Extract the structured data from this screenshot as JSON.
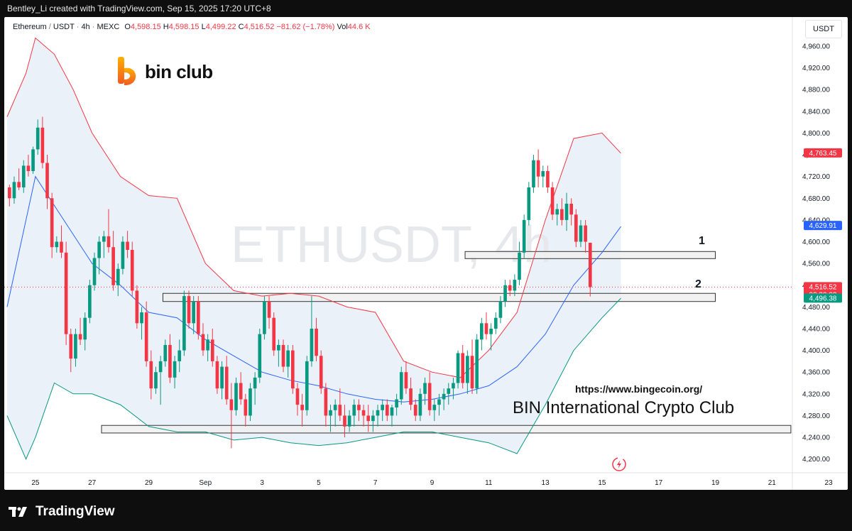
{
  "header": {
    "attribution": "Bentley_Li created with TradingView.com, Sep 15, 2025 17:20 UTC+8"
  },
  "legend": {
    "symbol": "Ethereum",
    "quote": "USDT",
    "interval": "4h",
    "exchange": "MEXC",
    "open_label": "O",
    "open": "4,598.15",
    "high_label": "H",
    "high": "4,598.15",
    "low_label": "L",
    "low": "4,499.22",
    "close_label": "C",
    "close": "4,516.52",
    "change": "−81.62 (−1.78%)",
    "vol_label": "Vol",
    "vol": "44.6 K"
  },
  "unit_label": "USDT",
  "logo": {
    "text": "bin club"
  },
  "watermark": "ETHUSDT, 4h",
  "annotations": {
    "zone1_label": "1",
    "zone2_label": "2",
    "url": "https://www.bingecoin.org/",
    "club": "BIN International Crypto Club"
  },
  "footer": {
    "brand": "TradingView"
  },
  "colors": {
    "up": "#089981",
    "down": "#f23645",
    "upper_band": "#f23645",
    "lower_band": "#089981",
    "basis": "#2962ff",
    "band_fill": "#e9f0f7"
  },
  "chart_data": {
    "type": "candlestick",
    "ylim": [
      4180,
      4990
    ],
    "y_ticks": [
      4200,
      4240,
      4280,
      4320,
      4360,
      4400,
      4440,
      4480,
      4520,
      4560,
      4600,
      4640,
      4680,
      4720,
      4760,
      4800,
      4840,
      4880,
      4920,
      4960
    ],
    "y_tick_labels": [
      "4,200.00",
      "4,240.00",
      "4,280.00",
      "4,320.00",
      "4,360.00",
      "4,400.00",
      "4,440.00",
      "4,480.00",
      "4,520.00",
      "4,560.00",
      "4,600.00",
      "4,640.00",
      "4,680.00",
      "4,720.00",
      "4,760.00",
      "4,800.00",
      "4,840.00",
      "4,880.00",
      "4,920.00",
      "4,960.00"
    ],
    "x_ticks": [
      {
        "label": "25",
        "bar": 6
      },
      {
        "label": "27",
        "bar": 18
      },
      {
        "label": "29",
        "bar": 30
      },
      {
        "label": "Sep",
        "bar": 42
      },
      {
        "label": "3",
        "bar": 54
      },
      {
        "label": "5",
        "bar": 66
      },
      {
        "label": "7",
        "bar": 78
      },
      {
        "label": "9",
        "bar": 90
      },
      {
        "label": "11",
        "bar": 102
      },
      {
        "label": "13",
        "bar": 114
      },
      {
        "label": "15",
        "bar": 126
      },
      {
        "label": "17",
        "bar": 138
      },
      {
        "label": "19",
        "bar": 150
      },
      {
        "label": "21",
        "bar": 162
      },
      {
        "label": "23",
        "bar": 174
      }
    ],
    "price_tags": [
      {
        "label": "4,763.45",
        "price": 4763.45,
        "color": "#f23645"
      },
      {
        "label": "4,629.91",
        "price": 4629.91,
        "color": "#2962ff"
      },
      {
        "label": "4,516.52",
        "price": 4516.52,
        "color": "#f23645",
        "sub": "02:39:03"
      },
      {
        "label": "4,496.38",
        "price": 4496.38,
        "color": "#089981"
      }
    ],
    "zones": [
      {
        "name": "1",
        "from_bar": 97,
        "to_bar": 150,
        "low": 4570,
        "high": 4582
      },
      {
        "name": "2",
        "from_bar": 33,
        "to_bar": 150,
        "low": 4490,
        "high": 4505
      },
      {
        "name": "base",
        "from_bar": 20,
        "to_bar": 166,
        "low": 4248,
        "high": 4262
      }
    ],
    "candles": [
      [
        4700,
        4705,
        4665,
        4680
      ],
      [
        4680,
        4720,
        4670,
        4710
      ],
      [
        4710,
        4735,
        4695,
        4700
      ],
      [
        4700,
        4750,
        4690,
        4740
      ],
      [
        4740,
        4760,
        4720,
        4730
      ],
      [
        4730,
        4775,
        4725,
        4770
      ],
      [
        4770,
        4825,
        4760,
        4810
      ],
      [
        4810,
        4830,
        4735,
        4745
      ],
      [
        4745,
        4760,
        4660,
        4680
      ],
      [
        4680,
        4690,
        4570,
        4590
      ],
      [
        4590,
        4610,
        4580,
        4600
      ],
      [
        4600,
        4630,
        4570,
        4580
      ],
      [
        4580,
        4600,
        4410,
        4430
      ],
      [
        4430,
        4440,
        4360,
        4385
      ],
      [
        4385,
        4440,
        4370,
        4430
      ],
      [
        4430,
        4460,
        4410,
        4420
      ],
      [
        4420,
        4470,
        4400,
        4460
      ],
      [
        4460,
        4530,
        4450,
        4520
      ],
      [
        4520,
        4580,
        4510,
        4570
      ],
      [
        4570,
        4610,
        4540,
        4600
      ],
      [
        4600,
        4620,
        4570,
        4610
      ],
      [
        4610,
        4660,
        4580,
        4590
      ],
      [
        4590,
        4620,
        4510,
        4520
      ],
      [
        4520,
        4560,
        4500,
        4550
      ],
      [
        4550,
        4610,
        4540,
        4600
      ],
      [
        4600,
        4620,
        4570,
        4585
      ],
      [
        4585,
        4600,
        4500,
        4510
      ],
      [
        4510,
        4520,
        4440,
        4450
      ],
      [
        4450,
        4480,
        4420,
        4470
      ],
      [
        4470,
        4490,
        4370,
        4380
      ],
      [
        4380,
        4400,
        4310,
        4330
      ],
      [
        4330,
        4370,
        4320,
        4360
      ],
      [
        4360,
        4390,
        4300,
        4380
      ],
      [
        4380,
        4420,
        4370,
        4410
      ],
      [
        4410,
        4430,
        4340,
        4350
      ],
      [
        4350,
        4390,
        4330,
        4380
      ],
      [
        4380,
        4420,
        4360,
        4400
      ],
      [
        4400,
        4510,
        4390,
        4500
      ],
      [
        4500,
        4510,
        4440,
        4450
      ],
      [
        4450,
        4500,
        4430,
        4490
      ],
      [
        4490,
        4500,
        4420,
        4430
      ],
      [
        4430,
        4450,
        4390,
        4400
      ],
      [
        4400,
        4430,
        4380,
        4420
      ],
      [
        4420,
        4440,
        4370,
        4380
      ],
      [
        4380,
        4390,
        4320,
        4330
      ],
      [
        4330,
        4380,
        4310,
        4370
      ],
      [
        4370,
        4390,
        4300,
        4310
      ],
      [
        4310,
        4340,
        4220,
        4290
      ],
      [
        4290,
        4350,
        4280,
        4340
      ],
      [
        4340,
        4360,
        4300,
        4310
      ],
      [
        4310,
        4320,
        4260,
        4280
      ],
      [
        4280,
        4340,
        4270,
        4330
      ],
      [
        4330,
        4360,
        4300,
        4350
      ],
      [
        4350,
        4440,
        4340,
        4430
      ],
      [
        4430,
        4500,
        4420,
        4490
      ],
      [
        4490,
        4500,
        4440,
        4460
      ],
      [
        4460,
        4470,
        4390,
        4400
      ],
      [
        4400,
        4420,
        4370,
        4410
      ],
      [
        4410,
        4420,
        4360,
        4370
      ],
      [
        4370,
        4410,
        4350,
        4400
      ],
      [
        4400,
        4410,
        4320,
        4330
      ],
      [
        4330,
        4340,
        4280,
        4300
      ],
      [
        4300,
        4320,
        4260,
        4290
      ],
      [
        4290,
        4390,
        4280,
        4380
      ],
      [
        4380,
        4500,
        4370,
        4440
      ],
      [
        4440,
        4460,
        4380,
        4390
      ],
      [
        4390,
        4400,
        4320,
        4330
      ],
      [
        4330,
        4340,
        4260,
        4280
      ],
      [
        4280,
        4300,
        4250,
        4290
      ],
      [
        4290,
        4310,
        4260,
        4300
      ],
      [
        4300,
        4330,
        4270,
        4280
      ],
      [
        4280,
        4300,
        4240,
        4260
      ],
      [
        4260,
        4290,
        4250,
        4280
      ],
      [
        4280,
        4310,
        4260,
        4300
      ],
      [
        4300,
        4310,
        4270,
        4290
      ],
      [
        4290,
        4300,
        4260,
        4280
      ],
      [
        4280,
        4300,
        4250,
        4270
      ],
      [
        4270,
        4290,
        4250,
        4280
      ],
      [
        4280,
        4300,
        4260,
        4290
      ],
      [
        4290,
        4310,
        4270,
        4300
      ],
      [
        4300,
        4310,
        4270,
        4280
      ],
      [
        4280,
        4300,
        4260,
        4295
      ],
      [
        4295,
        4320,
        4280,
        4310
      ],
      [
        4310,
        4370,
        4300,
        4360
      ],
      [
        4360,
        4380,
        4320,
        4330
      ],
      [
        4330,
        4350,
        4290,
        4300
      ],
      [
        4300,
        4310,
        4270,
        4280
      ],
      [
        4280,
        4330,
        4270,
        4320
      ],
      [
        4320,
        4350,
        4300,
        4340
      ],
      [
        4340,
        4360,
        4280,
        4290
      ],
      [
        4290,
        4310,
        4270,
        4300
      ],
      [
        4300,
        4320,
        4280,
        4310
      ],
      [
        4310,
        4330,
        4290,
        4320
      ],
      [
        4320,
        4340,
        4300,
        4330
      ],
      [
        4330,
        4350,
        4310,
        4340
      ],
      [
        4340,
        4400,
        4330,
        4395
      ],
      [
        4395,
        4410,
        4330,
        4340
      ],
      [
        4340,
        4400,
        4320,
        4390
      ],
      [
        4390,
        4420,
        4320,
        4330
      ],
      [
        4330,
        4430,
        4320,
        4420
      ],
      [
        4420,
        4460,
        4400,
        4450
      ],
      [
        4450,
        4470,
        4420,
        4430
      ],
      [
        4430,
        4450,
        4400,
        4440
      ],
      [
        4440,
        4470,
        4430,
        4460
      ],
      [
        4460,
        4500,
        4450,
        4490
      ],
      [
        4490,
        4530,
        4480,
        4520
      ],
      [
        4520,
        4530,
        4500,
        4510
      ],
      [
        4510,
        4540,
        4500,
        4530
      ],
      [
        4530,
        4600,
        4520,
        4580
      ],
      [
        4580,
        4650,
        4570,
        4640
      ],
      [
        4640,
        4710,
        4630,
        4700
      ],
      [
        4700,
        4760,
        4690,
        4750
      ],
      [
        4750,
        4770,
        4700,
        4720
      ],
      [
        4720,
        4740,
        4700,
        4730
      ],
      [
        4730,
        4740,
        4690,
        4700
      ],
      [
        4700,
        4710,
        4640,
        4650
      ],
      [
        4650,
        4670,
        4630,
        4660
      ],
      [
        4660,
        4680,
        4630,
        4640
      ],
      [
        4640,
        4690,
        4620,
        4670
      ],
      [
        4670,
        4680,
        4630,
        4650
      ],
      [
        4650,
        4660,
        4590,
        4600
      ],
      [
        4600,
        4640,
        4590,
        4630
      ],
      [
        4630,
        4640,
        4580,
        4600
      ],
      [
        4598.15,
        4598.15,
        4499.22,
        4516.52
      ]
    ],
    "basis": [
      [
        0,
        4480
      ],
      [
        6,
        4720
      ],
      [
        12,
        4640
      ],
      [
        18,
        4560
      ],
      [
        24,
        4520
      ],
      [
        30,
        4470
      ],
      [
        36,
        4460
      ],
      [
        42,
        4420
      ],
      [
        48,
        4390
      ],
      [
        54,
        4360
      ],
      [
        60,
        4345
      ],
      [
        66,
        4335
      ],
      [
        72,
        4320
      ],
      [
        78,
        4310
      ],
      [
        84,
        4305
      ],
      [
        90,
        4310
      ],
      [
        96,
        4320
      ],
      [
        102,
        4335
      ],
      [
        108,
        4370
      ],
      [
        114,
        4430
      ],
      [
        120,
        4520
      ],
      [
        126,
        4580
      ],
      [
        130,
        4628
      ]
    ],
    "upper_band": [
      [
        0,
        4830
      ],
      [
        4,
        4910
      ],
      [
        6,
        4975
      ],
      [
        10,
        4945
      ],
      [
        14,
        4880
      ],
      [
        18,
        4800
      ],
      [
        24,
        4720
      ],
      [
        30,
        4685
      ],
      [
        36,
        4680
      ],
      [
        42,
        4560
      ],
      [
        48,
        4510
      ],
      [
        54,
        4500
      ],
      [
        60,
        4505
      ],
      [
        66,
        4500
      ],
      [
        72,
        4480
      ],
      [
        78,
        4470
      ],
      [
        84,
        4380
      ],
      [
        90,
        4360
      ],
      [
        96,
        4350
      ],
      [
        102,
        4400
      ],
      [
        108,
        4470
      ],
      [
        114,
        4640
      ],
      [
        120,
        4790
      ],
      [
        126,
        4800
      ],
      [
        130,
        4763
      ]
    ],
    "lower_band": [
      [
        0,
        4280
      ],
      [
        4,
        4200
      ],
      [
        6,
        4240
      ],
      [
        10,
        4340
      ],
      [
        14,
        4320
      ],
      [
        18,
        4320
      ],
      [
        24,
        4300
      ],
      [
        30,
        4260
      ],
      [
        36,
        4250
      ],
      [
        42,
        4250
      ],
      [
        48,
        4235
      ],
      [
        54,
        4240
      ],
      [
        60,
        4230
      ],
      [
        66,
        4225
      ],
      [
        72,
        4230
      ],
      [
        78,
        4240
      ],
      [
        84,
        4250
      ],
      [
        90,
        4250
      ],
      [
        96,
        4240
      ],
      [
        102,
        4230
      ],
      [
        108,
        4210
      ],
      [
        114,
        4300
      ],
      [
        120,
        4400
      ],
      [
        126,
        4460
      ],
      [
        130,
        4496
      ]
    ]
  }
}
